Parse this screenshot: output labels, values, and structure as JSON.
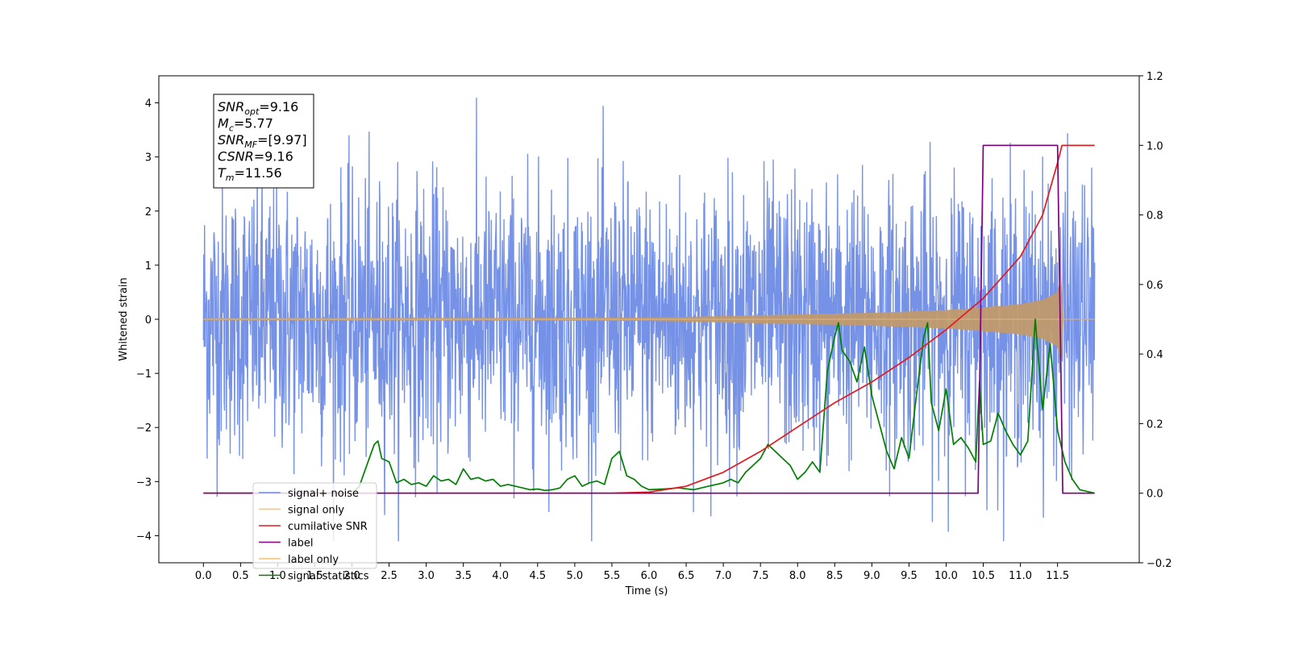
{
  "chart_data": {
    "type": "line",
    "title": "",
    "xlabel": "Time (s)",
    "ylabel_left": "Whitened strain",
    "ylabel_right": "",
    "xlim": [
      -0.6,
      12.6
    ],
    "ylim_left": [
      -4.5,
      4.5
    ],
    "ylim_right": [
      -0.2,
      1.2
    ],
    "x_ticks": [
      0.0,
      0.5,
      1.0,
      1.5,
      2.0,
      2.5,
      3.0,
      3.5,
      4.0,
      4.5,
      5.0,
      5.5,
      6.0,
      6.5,
      7.0,
      7.5,
      8.0,
      8.5,
      9.0,
      9.5,
      10.0,
      10.5,
      11.0,
      11.5
    ],
    "x_tick_labels": [
      "0.0",
      "0.5",
      "1.0",
      "1.5",
      "2.0",
      "2.5",
      "3.0",
      "3.5",
      "4.0",
      "4.5",
      "5.0",
      "5.5",
      "6.0",
      "6.5",
      "7.0",
      "7.5",
      "8.0",
      "8.5",
      "9.0",
      "9.5",
      "10.0",
      "10.5",
      "11.0",
      "11.5"
    ],
    "y_left_ticks": [
      -4,
      -3,
      -2,
      -1,
      0,
      1,
      2,
      3,
      4
    ],
    "y_left_tick_labels": [
      "−4",
      "−3",
      "−2",
      "−1",
      "0",
      "1",
      "2",
      "3",
      "4"
    ],
    "y_right_ticks": [
      -0.2,
      0.0,
      0.2,
      0.4,
      0.6,
      0.8,
      1.0,
      1.2
    ],
    "y_right_tick_labels": [
      "−0.2",
      "0.0",
      "0.2",
      "0.4",
      "0.6",
      "0.8",
      "1.0",
      "1.2"
    ],
    "grid": false,
    "legend_position": "bottom-left",
    "series": [
      {
        "name": "signal+ noise",
        "color": "#6e8ce6",
        "axis": "left",
        "description_visible": "whitened strain noise between about -4 and 4 over 0 to 12 s"
      },
      {
        "name": "signal only",
        "color": "#ffbf66",
        "axis": "left",
        "envelope": {
          "x": [
            0,
            6.0,
            7.0,
            8.0,
            9.0,
            10.0,
            10.5,
            11.0,
            11.3,
            11.5,
            11.56,
            11.57,
            12.0
          ],
          "amp": [
            0.02,
            0.03,
            0.06,
            0.09,
            0.12,
            0.17,
            0.22,
            0.28,
            0.36,
            0.5,
            0.9,
            0.0,
            0.0
          ]
        }
      },
      {
        "name": "cumilative SNR",
        "color": "#e31a1c",
        "axis": "right",
        "x": [
          0,
          5.5,
          6.0,
          6.5,
          7.0,
          7.5,
          8.0,
          8.5,
          9.0,
          9.5,
          10.0,
          10.5,
          11.0,
          11.3,
          11.5,
          11.56,
          12.0
        ],
        "y": [
          0.0,
          0.0,
          0.003,
          0.02,
          0.06,
          0.12,
          0.19,
          0.26,
          0.32,
          0.39,
          0.47,
          0.56,
          0.68,
          0.8,
          0.95,
          1.0,
          1.0
        ]
      },
      {
        "name": "label",
        "color": "#800080",
        "axis": "right",
        "x": [
          0,
          10.43,
          10.5,
          11.5,
          11.57,
          12.0
        ],
        "y": [
          0,
          0,
          1,
          1,
          0,
          0
        ]
      },
      {
        "name": "label only",
        "color": "#ffbf66",
        "axis": "right"
      },
      {
        "name": "signal statistics",
        "color": "#008000",
        "axis": "right",
        "x": [
          0,
          2.0,
          2.1,
          2.2,
          2.3,
          2.35,
          2.4,
          2.5,
          2.6,
          2.7,
          2.8,
          2.9,
          3.0,
          3.1,
          3.2,
          3.3,
          3.4,
          3.5,
          3.6,
          3.7,
          3.8,
          3.9,
          4.0,
          4.1,
          4.2,
          4.3,
          4.4,
          4.5,
          4.6,
          4.7,
          4.8,
          4.9,
          5.0,
          5.1,
          5.2,
          5.3,
          5.4,
          5.5,
          5.6,
          5.7,
          5.8,
          5.9,
          6.0,
          6.2,
          6.4,
          6.6,
          6.8,
          7.0,
          7.1,
          7.2,
          7.3,
          7.4,
          7.5,
          7.6,
          7.7,
          7.8,
          7.9,
          8.0,
          8.1,
          8.2,
          8.3,
          8.4,
          8.5,
          8.55,
          8.6,
          8.7,
          8.8,
          8.9,
          9.0,
          9.1,
          9.2,
          9.3,
          9.4,
          9.5,
          9.6,
          9.7,
          9.75,
          9.8,
          9.9,
          10.0,
          10.1,
          10.2,
          10.3,
          10.4,
          10.45,
          10.5,
          10.6,
          10.7,
          10.8,
          10.9,
          11.0,
          11.1,
          11.2,
          11.3,
          11.4,
          11.5,
          11.6,
          11.7,
          11.8,
          11.9,
          12.0
        ],
        "y": [
          0.0,
          0.0,
          0.02,
          0.08,
          0.14,
          0.15,
          0.1,
          0.09,
          0.03,
          0.04,
          0.025,
          0.03,
          0.02,
          0.05,
          0.035,
          0.04,
          0.025,
          0.07,
          0.04,
          0.045,
          0.035,
          0.04,
          0.02,
          0.025,
          0.02,
          0.015,
          0.01,
          0.012,
          0.008,
          0.01,
          0.015,
          0.04,
          0.05,
          0.02,
          0.03,
          0.035,
          0.025,
          0.1,
          0.12,
          0.05,
          0.04,
          0.02,
          0.01,
          0.012,
          0.015,
          0.01,
          0.02,
          0.03,
          0.04,
          0.03,
          0.06,
          0.08,
          0.1,
          0.14,
          0.12,
          0.1,
          0.08,
          0.04,
          0.06,
          0.09,
          0.06,
          0.35,
          0.45,
          0.49,
          0.41,
          0.38,
          0.32,
          0.42,
          0.28,
          0.2,
          0.12,
          0.07,
          0.16,
          0.1,
          0.28,
          0.45,
          0.49,
          0.26,
          0.18,
          0.3,
          0.14,
          0.16,
          0.13,
          0.09,
          0.32,
          0.14,
          0.15,
          0.23,
          0.18,
          0.14,
          0.11,
          0.15,
          0.5,
          0.24,
          0.43,
          0.18,
          0.09,
          0.04,
          0.01,
          0.005,
          0.0
        ]
      }
    ]
  },
  "annotation": {
    "lines": [
      {
        "main": "SNR",
        "sub": "opt",
        "value": "=9.16"
      },
      {
        "main": "M",
        "sub": "c",
        "value": "=5.77"
      },
      {
        "main": "SNR",
        "sub": "MF",
        "value": "=[9.97]"
      },
      {
        "main": "CSNR",
        "sub": "",
        "value": "=9.16"
      },
      {
        "main": "T",
        "sub": "m",
        "value": "=11.56"
      }
    ]
  },
  "legend": {
    "items": [
      {
        "label": "signal+ noise",
        "color": "#6e8ce6"
      },
      {
        "label": "signal only",
        "color": "#ffbf66"
      },
      {
        "label": "cumilative SNR",
        "color": "#e31a1c"
      },
      {
        "label": "label",
        "color": "#800080"
      },
      {
        "label": "label only",
        "color": "#ffbf66"
      },
      {
        "label": "signal statistics",
        "color": "#008000"
      }
    ]
  }
}
